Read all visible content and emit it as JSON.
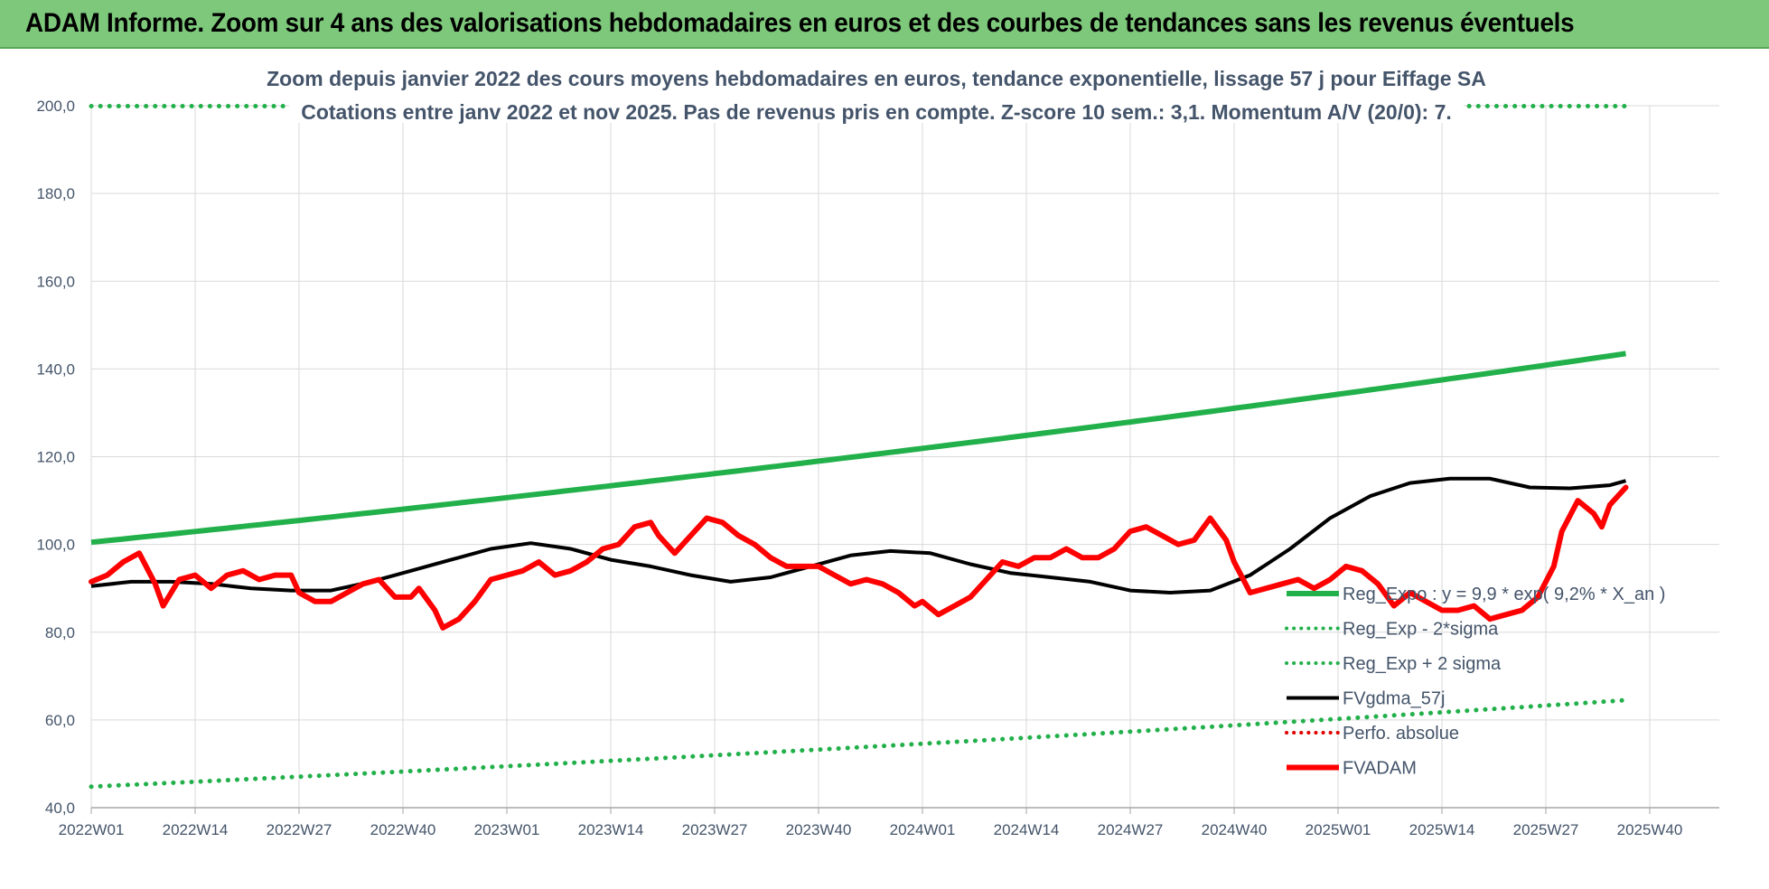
{
  "header": {
    "title": "ADAM Informe. Zoom sur 4 ans des valorisations hebdomadaires en euros et des courbes de tendances sans les revenus éventuels"
  },
  "chart_data": {
    "type": "line",
    "title_lines": [
      "Zoom depuis janvier 2022 des cours moyens hebdomadaires en euros, tendance exponentielle, lissage 57 j pour Eiffage SA",
      "Cotations entre janv 2022 et nov 2025. Pas de revenus pris en compte. Z-score 10 sem.: 3,1. Momentum A/V (20/0): 7."
    ],
    "ylim": [
      40,
      200
    ],
    "yticks": [
      "200,0",
      "180,0",
      "160,0",
      "140,0",
      "120,0",
      "100,0",
      "80,0",
      "60,0",
      "40,0"
    ],
    "xticks": [
      "2022W01",
      "2022W14",
      "2022W27",
      "2022W40",
      "2023W01",
      "2023W14",
      "2023W27",
      "2023W40",
      "2024W01",
      "2024W14",
      "2024W27",
      "2024W40",
      "2025W01",
      "2025W14",
      "2025W27",
      "2025W40"
    ],
    "grid": true,
    "legend_position": "bottom-right",
    "legend": [
      {
        "label": "Reg_Expo : y = 9,9 * exp( 9,2% *  X_an )",
        "color": "#22b04b",
        "style": "solid-thick"
      },
      {
        "label": "Reg_Exp - 2*sigma",
        "color": "#22b04b",
        "style": "dotted"
      },
      {
        "label": "Reg_Exp + 2 sigma",
        "color": "#22b04b",
        "style": "dotted"
      },
      {
        "label": "FVgdma_57j",
        "color": "#000000",
        "style": "solid"
      },
      {
        "label": "Perfo. absolue",
        "color": "#e00000",
        "style": "dotted"
      },
      {
        "label": "FVADAM",
        "color": "#ff0000",
        "style": "solid-thick"
      }
    ],
    "series": [
      {
        "name": "Reg_Expo : y = 9,9 * exp( 9,2% *  X_an )",
        "color": "#22b04b",
        "start": 100.5,
        "end": 143.5
      },
      {
        "name": "Reg_Exp - 2*sigma",
        "color": "#22b04b",
        "start": 44.8,
        "end": 64.5
      },
      {
        "name": "Reg_Exp + 2 sigma",
        "color": "#22b04b",
        "start": 199.9,
        "end": 199.9
      },
      {
        "name": "FVgdma_57j",
        "color": "#000000",
        "points": [
          [
            0,
            90.5
          ],
          [
            5,
            91.5
          ],
          [
            10,
            91.5
          ],
          [
            15,
            91.0
          ],
          [
            20,
            90.0
          ],
          [
            25,
            89.5
          ],
          [
            30,
            89.5
          ],
          [
            35,
            91.5
          ],
          [
            40,
            94.0
          ],
          [
            45,
            96.5
          ],
          [
            50,
            99.0
          ],
          [
            55,
            100.3
          ],
          [
            60,
            99.0
          ],
          [
            65,
            96.5
          ],
          [
            70,
            95.0
          ],
          [
            75,
            93.0
          ],
          [
            80,
            91.5
          ],
          [
            85,
            92.5
          ],
          [
            90,
            95.0
          ],
          [
            95,
            97.5
          ],
          [
            100,
            98.5
          ],
          [
            105,
            98.0
          ],
          [
            110,
            95.5
          ],
          [
            115,
            93.5
          ],
          [
            120,
            92.5
          ],
          [
            125,
            91.5
          ],
          [
            130,
            89.5
          ],
          [
            135,
            89.0
          ],
          [
            140,
            89.5
          ],
          [
            145,
            93.0
          ],
          [
            150,
            99.0
          ],
          [
            155,
            106.0
          ],
          [
            160,
            111.0
          ],
          [
            165,
            114.0
          ],
          [
            170,
            115.0
          ],
          [
            175,
            115.0
          ],
          [
            180,
            113.0
          ],
          [
            185,
            112.8
          ],
          [
            190,
            113.5
          ],
          [
            192,
            114.5
          ]
        ]
      },
      {
        "name": "Perfo. absolue",
        "color": "#e00000",
        "points": []
      },
      {
        "name": "FVADAM",
        "color": "#ff0000",
        "points": [
          [
            0,
            91.5
          ],
          [
            2,
            93
          ],
          [
            4,
            96
          ],
          [
            6,
            98
          ],
          [
            8,
            91
          ],
          [
            9,
            86
          ],
          [
            11,
            92
          ],
          [
            13,
            93
          ],
          [
            15,
            90
          ],
          [
            17,
            93
          ],
          [
            19,
            94
          ],
          [
            21,
            92
          ],
          [
            23,
            93
          ],
          [
            25,
            93
          ],
          [
            26,
            89
          ],
          [
            28,
            87
          ],
          [
            30,
            87
          ],
          [
            32,
            89
          ],
          [
            34,
            91
          ],
          [
            36,
            92
          ],
          [
            38,
            88
          ],
          [
            40,
            88
          ],
          [
            41,
            90
          ],
          [
            43,
            85
          ],
          [
            44,
            81
          ],
          [
            46,
            83
          ],
          [
            48,
            87
          ],
          [
            50,
            92
          ],
          [
            52,
            93
          ],
          [
            54,
            94
          ],
          [
            56,
            96
          ],
          [
            58,
            93
          ],
          [
            60,
            94
          ],
          [
            62,
            96
          ],
          [
            64,
            99
          ],
          [
            66,
            100
          ],
          [
            68,
            104
          ],
          [
            70,
            105
          ],
          [
            71,
            102
          ],
          [
            73,
            98
          ],
          [
            75,
            102
          ],
          [
            77,
            106
          ],
          [
            79,
            105
          ],
          [
            81,
            102
          ],
          [
            83,
            100
          ],
          [
            85,
            97
          ],
          [
            87,
            95
          ],
          [
            89,
            95
          ],
          [
            91,
            95
          ],
          [
            93,
            93
          ],
          [
            95,
            91
          ],
          [
            97,
            92
          ],
          [
            99,
            91
          ],
          [
            101,
            89
          ],
          [
            103,
            86
          ],
          [
            104,
            87
          ],
          [
            106,
            84
          ],
          [
            108,
            86
          ],
          [
            110,
            88
          ],
          [
            112,
            92
          ],
          [
            114,
            96
          ],
          [
            116,
            95
          ],
          [
            118,
            97
          ],
          [
            120,
            97
          ],
          [
            122,
            99
          ],
          [
            124,
            97
          ],
          [
            126,
            97
          ],
          [
            128,
            99
          ],
          [
            130,
            103
          ],
          [
            132,
            104
          ],
          [
            134,
            102
          ],
          [
            136,
            100
          ],
          [
            138,
            101
          ],
          [
            140,
            106
          ],
          [
            142,
            101
          ],
          [
            143,
            96
          ],
          [
            145,
            89
          ],
          [
            147,
            90
          ],
          [
            149,
            91
          ],
          [
            151,
            92
          ],
          [
            153,
            90
          ],
          [
            155,
            92
          ],
          [
            157,
            95
          ],
          [
            159,
            94
          ],
          [
            161,
            91
          ],
          [
            163,
            86
          ],
          [
            165,
            89
          ],
          [
            167,
            87
          ],
          [
            169,
            85
          ],
          [
            171,
            85
          ],
          [
            173,
            86
          ],
          [
            175,
            83
          ],
          [
            177,
            84
          ],
          [
            179,
            85
          ],
          [
            181,
            88
          ],
          [
            183,
            95
          ],
          [
            184,
            103
          ],
          [
            186,
            110
          ],
          [
            188,
            107
          ],
          [
            189,
            104
          ],
          [
            190,
            109
          ],
          [
            192,
            113
          ]
        ]
      }
    ]
  }
}
